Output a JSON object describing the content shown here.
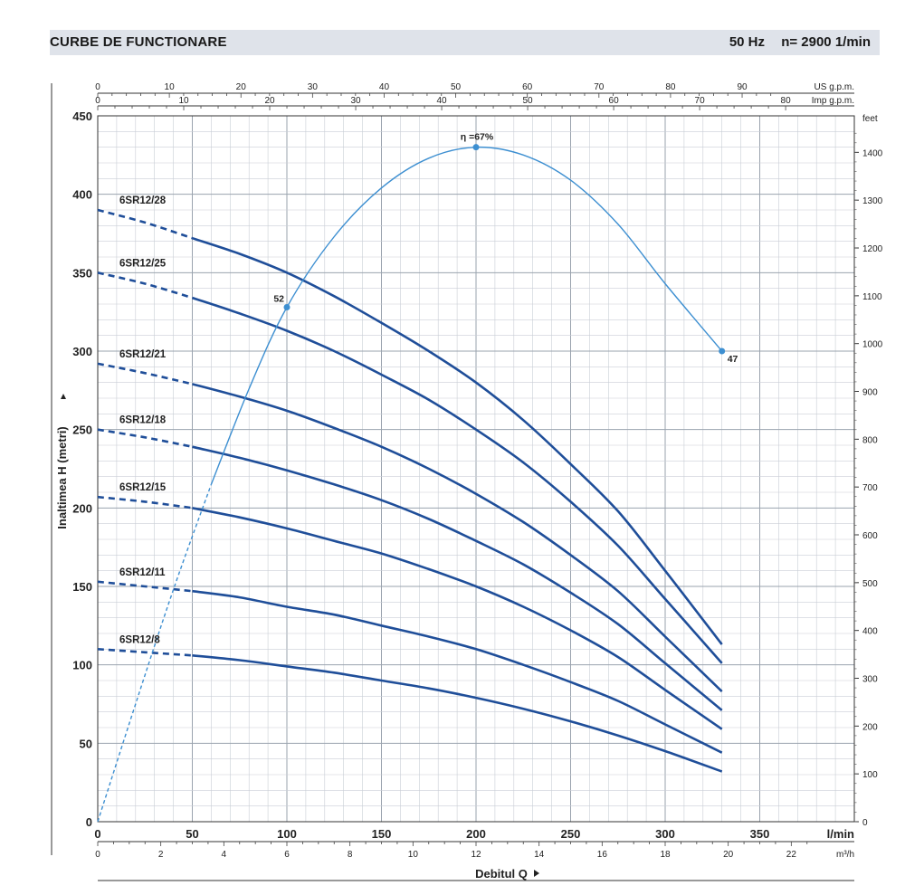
{
  "header": {
    "title": "CURBE DE FUNCTIONARE",
    "frequency": "50 Hz",
    "speed": "n= 2900  1/min"
  },
  "chart_data": {
    "type": "line",
    "title": "CURBE DE FUNCTIONARE",
    "xlabel": "Debitul Q",
    "ylabel": "Inaltimea  H  (metri)",
    "x_unit": "l/min",
    "xlim": [
      0,
      400
    ],
    "ylim": [
      0,
      450
    ],
    "x_ticks": [
      0,
      50,
      100,
      150,
      200,
      250,
      300,
      350
    ],
    "y_ticks": [
      0,
      50,
      100,
      150,
      200,
      250,
      300,
      350,
      400,
      450
    ],
    "top_axis_1": {
      "label": "US g.p.m.",
      "ticks": [
        0,
        10,
        20,
        30,
        40,
        50,
        60,
        70,
        80,
        90
      ]
    },
    "top_axis_2": {
      "label": "Imp g.p.m.",
      "ticks": [
        0,
        10,
        20,
        30,
        40,
        50,
        60,
        70,
        80
      ]
    },
    "right_axis": {
      "label": "feet",
      "ticks": [
        0,
        100,
        200,
        300,
        400,
        500,
        600,
        700,
        800,
        900,
        1000,
        1100,
        1200,
        1300,
        1400
      ]
    },
    "bottom_axis_2": {
      "label": "m³/h",
      "ticks": [
        0,
        2,
        4,
        6,
        8,
        10,
        12,
        14,
        16,
        18,
        20,
        22
      ]
    },
    "series": [
      {
        "name": "6SR12/28",
        "x": [
          0,
          25,
          50,
          75,
          100,
          125,
          150,
          175,
          200,
          225,
          250,
          275,
          300,
          330
        ],
        "y": [
          390,
          382,
          372,
          362,
          350,
          335,
          318,
          300,
          280,
          256,
          228,
          198,
          160,
          113
        ]
      },
      {
        "name": "6SR12/25",
        "x": [
          0,
          25,
          50,
          75,
          100,
          125,
          150,
          175,
          200,
          225,
          250,
          275,
          300,
          330
        ],
        "y": [
          350,
          343,
          334,
          324,
          313,
          300,
          285,
          269,
          250,
          229,
          204,
          176,
          142,
          101
        ]
      },
      {
        "name": "6SR12/21",
        "x": [
          0,
          25,
          50,
          75,
          100,
          125,
          150,
          175,
          200,
          225,
          250,
          275,
          300,
          330
        ],
        "y": [
          292,
          286,
          279,
          271,
          262,
          251,
          239,
          225,
          209,
          191,
          170,
          147,
          118,
          83
        ]
      },
      {
        "name": "6SR12/18",
        "x": [
          0,
          25,
          50,
          75,
          100,
          125,
          150,
          175,
          200,
          225,
          250,
          275,
          300,
          330
        ],
        "y": [
          250,
          245,
          239,
          232,
          224,
          215,
          205,
          193,
          179,
          164,
          146,
          126,
          101,
          71
        ]
      },
      {
        "name": "6SR12/15",
        "x": [
          0,
          25,
          50,
          75,
          100,
          125,
          150,
          175,
          200,
          225,
          250,
          275,
          300,
          330
        ],
        "y": [
          207,
          204,
          200,
          194,
          187,
          179,
          171,
          161,
          150,
          137,
          122,
          105,
          84,
          59
        ]
      },
      {
        "name": "6SR12/11",
        "x": [
          0,
          25,
          50,
          75,
          100,
          125,
          150,
          175,
          200,
          225,
          250,
          275,
          300,
          330
        ],
        "y": [
          153,
          150,
          147,
          143,
          137,
          132,
          125,
          118,
          110,
          100,
          89,
          77,
          62,
          44
        ]
      },
      {
        "name": "6SR12/8",
        "x": [
          0,
          25,
          50,
          75,
          100,
          125,
          150,
          175,
          200,
          225,
          250,
          275,
          300,
          330
        ],
        "y": [
          110,
          108,
          106,
          103,
          99,
          95,
          90,
          85,
          79,
          72,
          64,
          55,
          45,
          32
        ]
      }
    ],
    "efficiency_curve": {
      "name": "η",
      "x": [
        0,
        20,
        40,
        60,
        80,
        100,
        125,
        150,
        175,
        200,
        225,
        250,
        275,
        300,
        330
      ],
      "y": [
        0,
        75,
        148,
        215,
        276,
        328,
        373,
        404,
        423,
        430,
        425,
        409,
        381,
        343,
        300
      ],
      "points": [
        {
          "x": 100,
          "y": 328,
          "label": "52"
        },
        {
          "x": 200,
          "y": 430,
          "label": "η =67%"
        },
        {
          "x": 330,
          "y": 300,
          "label": "47"
        }
      ]
    }
  }
}
